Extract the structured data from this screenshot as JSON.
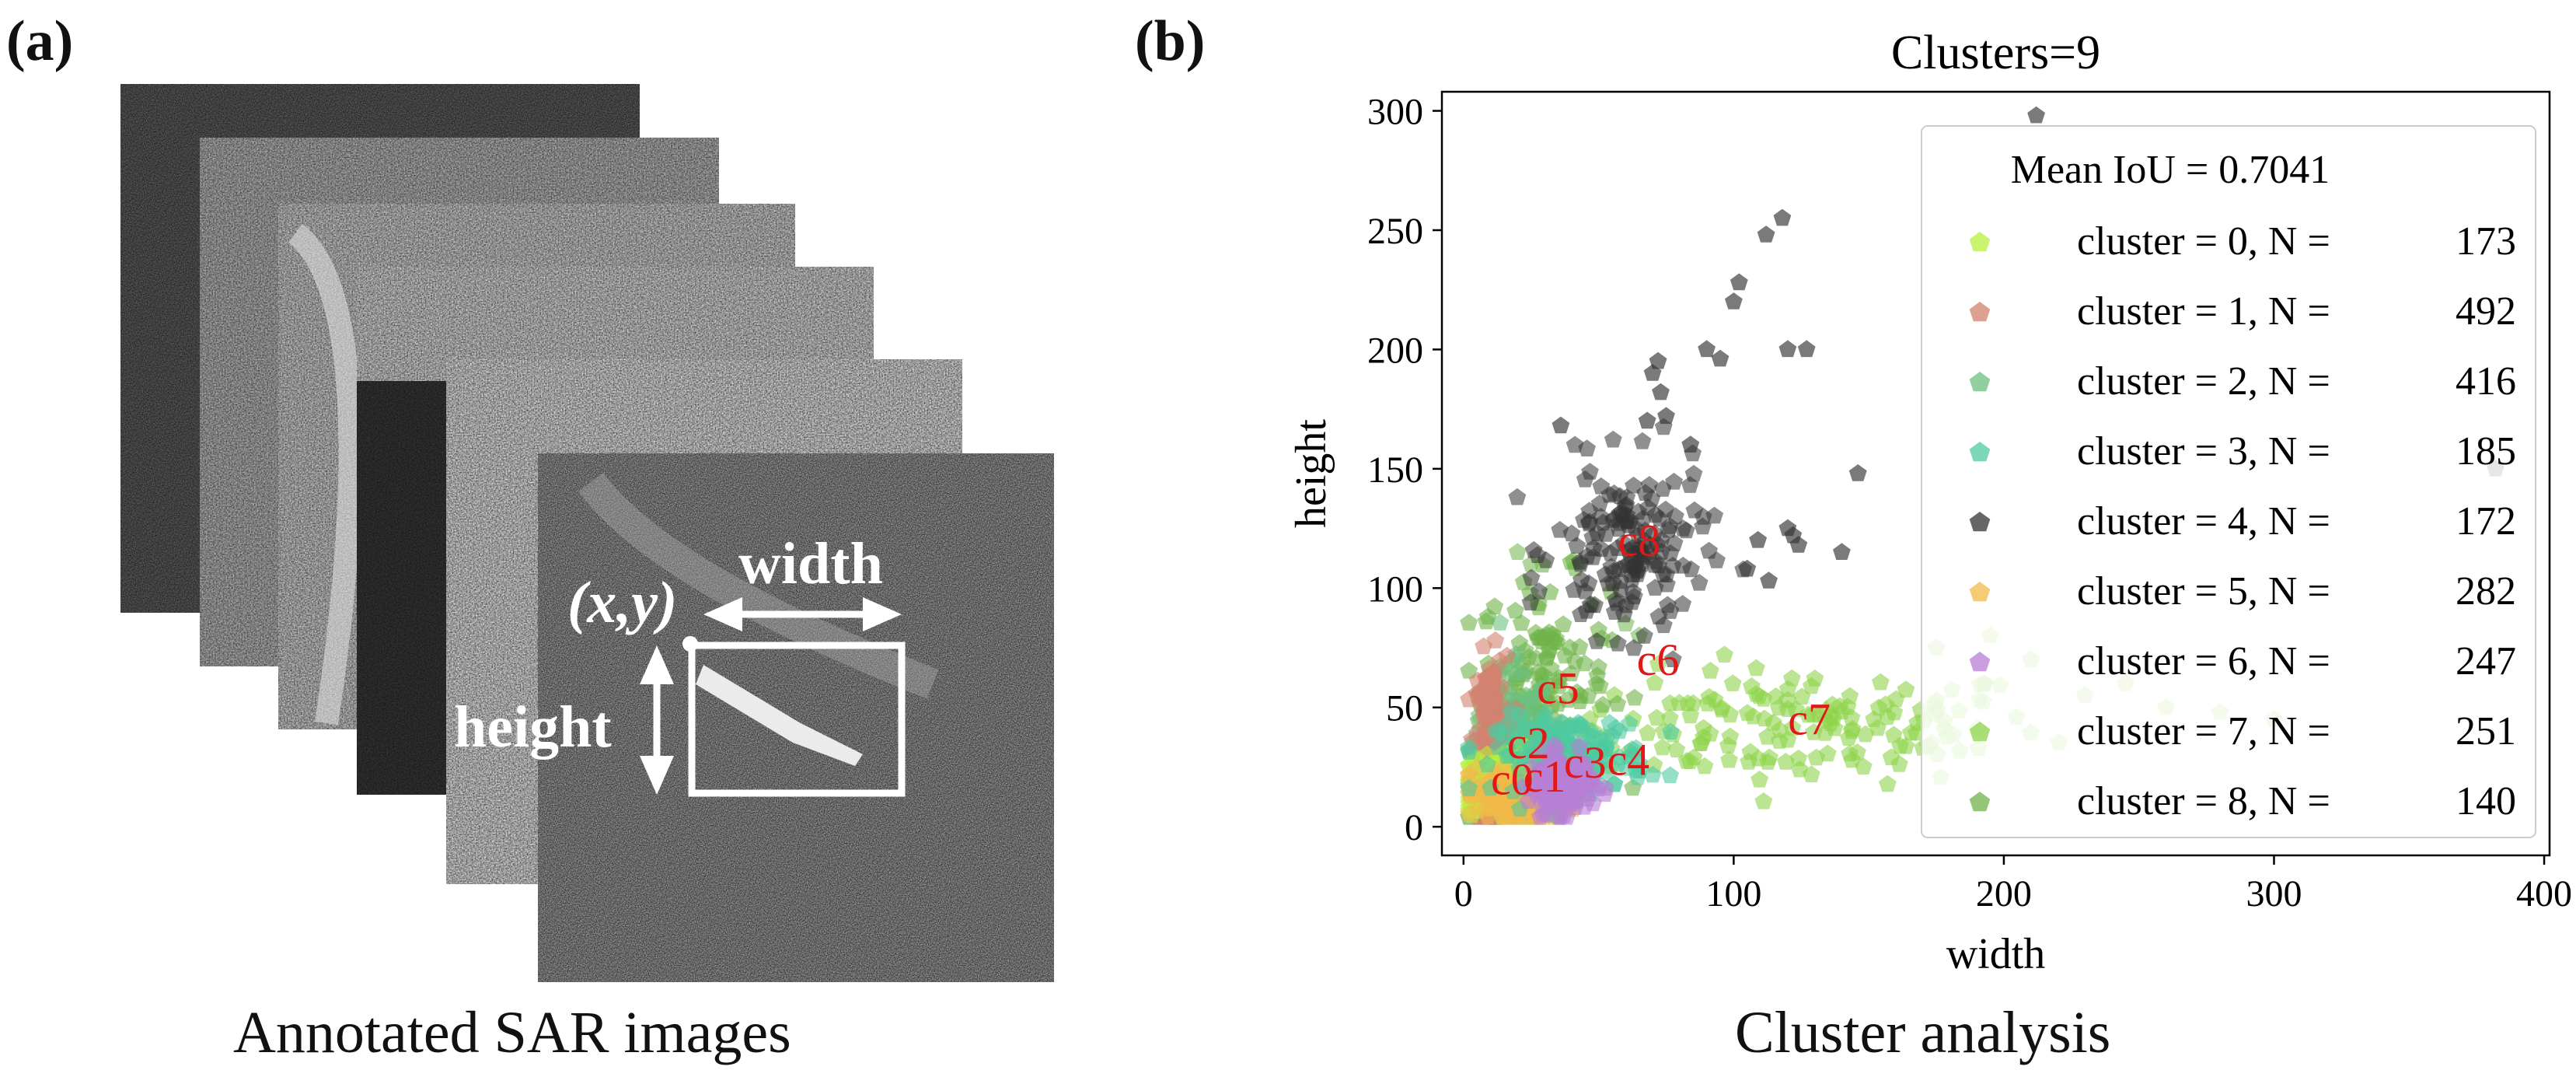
{
  "panels": {
    "left": {
      "label": "(a)",
      "caption": "Annotated SAR images",
      "annotations": {
        "coord": "(x,y)",
        "width": "width",
        "height": "height"
      }
    },
    "right": {
      "label": "(b)",
      "caption": "Cluster analysis"
    }
  },
  "chart_data": {
    "type": "scatter",
    "title": "Clusters=9",
    "xlabel": "width",
    "ylabel": "height",
    "xlim": [
      -8,
      402
    ],
    "ylim": [
      -12,
      308
    ],
    "xticks": [
      0,
      100,
      200,
      300,
      400
    ],
    "yticks": [
      0,
      50,
      100,
      150,
      200,
      250,
      300
    ],
    "grid": false,
    "legend": {
      "title": "Mean IoU = 0.7041",
      "placement": "upper-right"
    },
    "series": [
      {
        "name": "cluster = 0, N =",
        "count": 173,
        "color": "#b8f040",
        "center_label": "c0",
        "center": [
          16,
          18
        ],
        "spread": [
          9,
          7
        ],
        "extra": []
      },
      {
        "name": "cluster = 1, N =",
        "count": 492,
        "color": "#d2826e",
        "center_label": "c1",
        "center": [
          10,
          35
        ],
        "spread": [
          3,
          18
        ],
        "extra": []
      },
      {
        "name": "cluster = 2, N =",
        "count": 416,
        "color": "#6dbf7e",
        "center_label": "c2",
        "center": [
          17,
          33
        ],
        "spread": [
          8,
          16
        ],
        "extra": []
      },
      {
        "name": "cluster = 3, N =",
        "count": 185,
        "color": "#4ec9a0",
        "center_label": "c3",
        "center": [
          40,
          30
        ],
        "spread": [
          14,
          8
        ],
        "extra": []
      },
      {
        "name": "cluster = 4, N =",
        "count": 172,
        "color": "#333333",
        "center_label": "c8",
        "center": [
          62,
          115
        ],
        "spread": [
          14,
          18
        ],
        "extra": [
          [
            212,
            298
          ],
          [
            118,
            255
          ],
          [
            112,
            248
          ],
          [
            102,
            228
          ],
          [
            100,
            220
          ],
          [
            90,
            200
          ],
          [
            95,
            196
          ],
          [
            120,
            200
          ],
          [
            127,
            200
          ],
          [
            72,
            195
          ],
          [
            70,
            190
          ],
          [
            73,
            182
          ],
          [
            75,
            172
          ],
          [
            68,
            170
          ],
          [
            36,
            168
          ],
          [
            84,
            160
          ],
          [
            146,
            148
          ],
          [
            120,
            125
          ],
          [
            124,
            118
          ],
          [
            122,
            122
          ],
          [
            109,
            120
          ],
          [
            105,
            108
          ],
          [
            113,
            103
          ],
          [
            140,
            115
          ],
          [
            382,
            150
          ]
        ]
      },
      {
        "name": "cluster = 5, N =",
        "count": 282,
        "color": "#f2b94a",
        "center_label": "c4",
        "center": [
          20,
          13
        ],
        "spread": [
          9,
          6
        ],
        "extra": []
      },
      {
        "name": "cluster = 6, N =",
        "count": 247,
        "color": "#b77fd6",
        "center_label": "c6",
        "center": [
          36,
          18
        ],
        "spread": [
          6,
          6
        ],
        "extra": []
      },
      {
        "name": "cluster = 7, N =",
        "count": 251,
        "color": "#8ed34a",
        "center_label": "c7",
        "center": [
          125,
          42
        ],
        "spread": [
          45,
          12
        ],
        "extra": [
          [
            210,
            70
          ],
          [
            230,
            55
          ],
          [
            245,
            60
          ],
          [
            260,
            50
          ],
          [
            280,
            48
          ],
          [
            300,
            45
          ],
          [
            195,
            80
          ],
          [
            175,
            75
          ]
        ]
      },
      {
        "name": "cluster = 8, N =",
        "count": 140,
        "color": "#6fb44a",
        "center_label": "c5",
        "center": [
          30,
          60
        ],
        "spread": [
          12,
          22
        ],
        "extra": [
          [
            20,
            115
          ],
          [
            25,
            110
          ],
          [
            60,
            85
          ],
          [
            65,
            80
          ]
        ]
      }
    ],
    "center_labels": [
      {
        "text": "c8",
        "x": 65,
        "y": 118
      },
      {
        "text": "c6",
        "x": 72,
        "y": 68
      },
      {
        "text": "c5",
        "x": 35,
        "y": 56
      },
      {
        "text": "c7",
        "x": 128,
        "y": 43
      },
      {
        "text": "c2",
        "x": 24,
        "y": 33
      },
      {
        "text": "c3",
        "x": 45,
        "y": 25
      },
      {
        "text": "c4",
        "x": 61,
        "y": 26
      },
      {
        "text": "c0",
        "x": 18,
        "y": 18
      },
      {
        "text": "c1",
        "x": 30,
        "y": 19
      }
    ],
    "label_color": "#e01818"
  }
}
